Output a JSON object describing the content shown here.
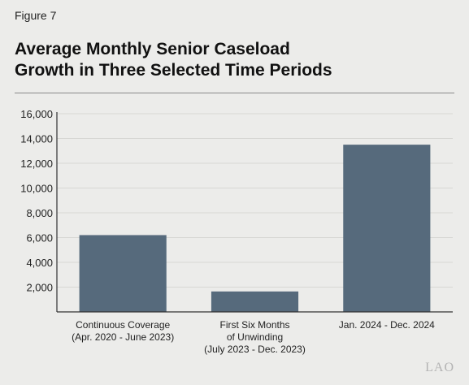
{
  "figure_label": "Figure 7",
  "title_lines": [
    "Average Monthly Senior Caseload",
    "Growth in Three Selected Time Periods"
  ],
  "logo_text": "LAO",
  "colors": {
    "bar": "#566a7c",
    "grid": "#d7d7d4",
    "axis": "#333333",
    "background": "#ececea"
  },
  "chart_data": {
    "type": "bar",
    "categories": [
      [
        "Continuous Coverage",
        "(Apr. 2020 - June 2023)"
      ],
      [
        "First Six Months",
        "of Unwinding",
        "(July 2023 - Dec. 2023)"
      ],
      [
        "Jan. 2024 - Dec. 2024"
      ]
    ],
    "values": [
      6200,
      1650,
      13500
    ],
    "ylim": [
      0,
      16000
    ],
    "yticks": [
      2000,
      4000,
      6000,
      8000,
      10000,
      12000,
      14000,
      16000
    ],
    "ytick_labels": [
      "2,000",
      "4,000",
      "6,000",
      "8,000",
      "10,000",
      "12,000",
      "14,000",
      "16,000"
    ],
    "grid": true,
    "title": "",
    "xlabel": "",
    "ylabel": ""
  }
}
